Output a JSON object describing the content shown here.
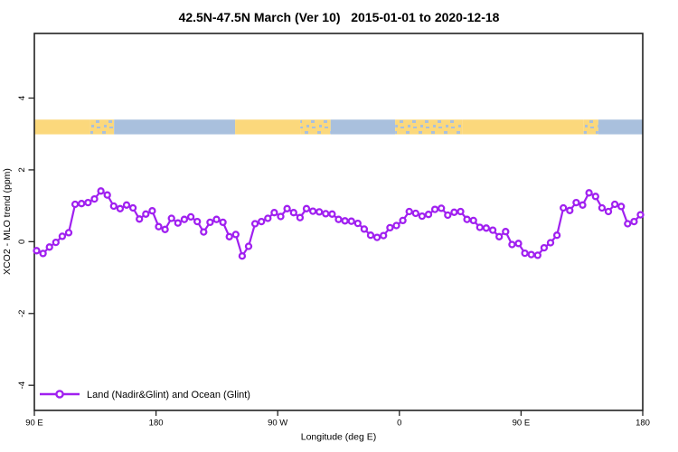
{
  "title": "42.5N-47.5N March (Ver 10)   2015-01-01 to 2020-12-18",
  "legend_label": "Land (Nadir&Glint) and Ocean (Glint)",
  "colors": {
    "series": "#A020F0",
    "marker_fill": "#FFFFFF",
    "land": "#FBD87C",
    "ocean": "#A9C0DD",
    "frame": "#222222",
    "text": "#000000"
  },
  "chart_data": {
    "type": "line",
    "title": "42.5N-47.5N March (Ver 10)   2015-01-01 to 2020-12-18",
    "xlabel": "Longitude (deg E)",
    "ylabel": "XCO2 - MLO trend (ppm)",
    "x_tick_labels": [
      "90 E",
      "180",
      "90 W",
      "0",
      "90 E",
      "180"
    ],
    "x_start_deg_east": 90,
    "x_end_deg_east": 540,
    "y_tick_values": [
      4,
      2,
      0,
      -2,
      -4
    ],
    "ylim": [
      -4.7,
      5.8
    ],
    "grid": false,
    "legend_position": "bottom-left",
    "series": [
      {
        "name": "Land (Nadir&Glint) and Ocean (Glint)",
        "marker": "open-circle",
        "values": [
          -0.25,
          -0.33,
          -0.15,
          -0.02,
          0.15,
          0.25,
          1.04,
          1.06,
          1.09,
          1.19,
          1.41,
          1.3,
          0.99,
          0.92,
          1.02,
          0.94,
          0.63,
          0.77,
          0.86,
          0.42,
          0.34,
          0.65,
          0.52,
          0.62,
          0.69,
          0.56,
          0.27,
          0.54,
          0.62,
          0.54,
          0.14,
          0.2,
          -0.4,
          -0.13,
          0.5,
          0.56,
          0.65,
          0.81,
          0.7,
          0.92,
          0.81,
          0.67,
          0.92,
          0.85,
          0.83,
          0.78,
          0.77,
          0.62,
          0.58,
          0.57,
          0.51,
          0.35,
          0.18,
          0.12,
          0.17,
          0.39,
          0.45,
          0.59,
          0.84,
          0.79,
          0.71,
          0.76,
          0.9,
          0.93,
          0.74,
          0.82,
          0.84,
          0.62,
          0.59,
          0.4,
          0.38,
          0.32,
          0.14,
          0.28,
          -0.08,
          -0.05,
          -0.32,
          -0.36,
          -0.38,
          -0.17,
          -0.03,
          0.18,
          0.94,
          0.87,
          1.09,
          1.02,
          1.36,
          1.26,
          0.94,
          0.84,
          1.04,
          0.98,
          0.5,
          0.56,
          0.75
        ]
      }
    ],
    "land_ocean_band": {
      "value_range": [
        2.99,
        3.4
      ],
      "segments": [
        {
          "start": 0.0,
          "end": 0.092,
          "surface": "land"
        },
        {
          "start": 0.092,
          "end": 0.131,
          "surface": "mixed"
        },
        {
          "start": 0.131,
          "end": 0.33,
          "surface": "ocean"
        },
        {
          "start": 0.33,
          "end": 0.437,
          "surface": "land"
        },
        {
          "start": 0.437,
          "end": 0.487,
          "surface": "mixed"
        },
        {
          "start": 0.487,
          "end": 0.593,
          "surface": "ocean"
        },
        {
          "start": 0.593,
          "end": 0.704,
          "surface": "mixed"
        },
        {
          "start": 0.704,
          "end": 0.903,
          "surface": "land"
        },
        {
          "start": 0.903,
          "end": 0.927,
          "surface": "mixed"
        },
        {
          "start": 0.927,
          "end": 1.0,
          "surface": "ocean"
        }
      ]
    }
  }
}
